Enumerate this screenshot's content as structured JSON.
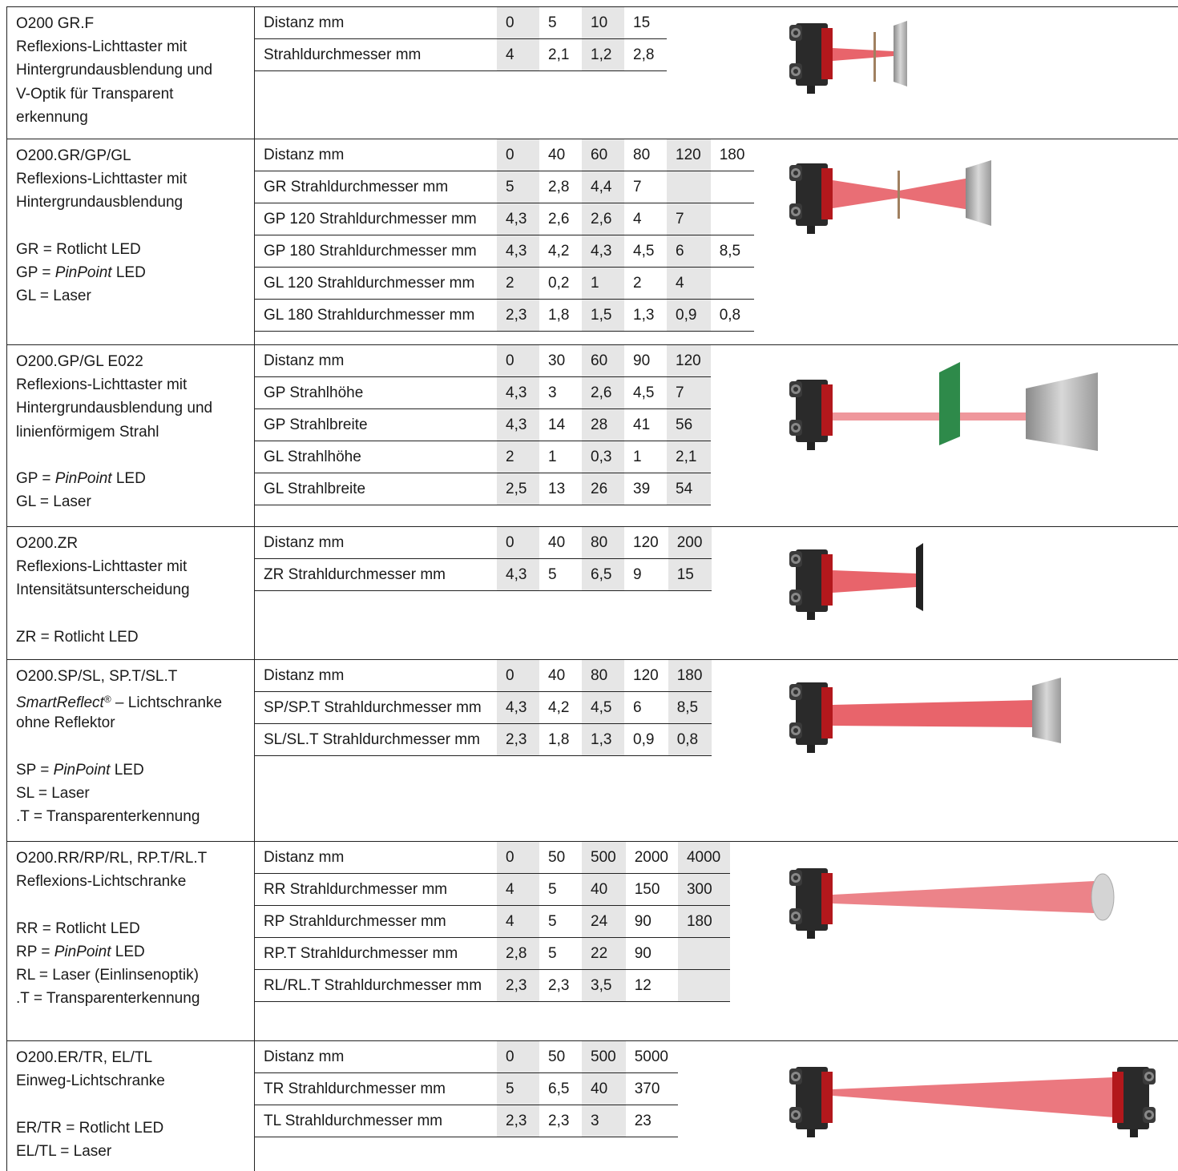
{
  "sections": [
    {
      "description": [
        [
          "O200 GR.F",
          "Reflexions-Lichttaster mit",
          "Hintergrundausblendung und",
          "V-Optik für Transparent",
          "erkennung"
        ]
      ],
      "rows": [
        [
          "Distanz mm",
          "0",
          "5",
          "10",
          "15"
        ],
        [
          "Strahldurchmesser mm",
          "4",
          "2,1",
          "1,2",
          "2,8"
        ]
      ]
    },
    {
      "description": [
        [
          "O200.GR/GP/GL",
          "Reflexions-Lichttaster mit",
          "Hintergrundausblendung"
        ],
        [
          "GR = Rotlicht LED",
          [
            {
              "text": "GP = "
            },
            {
              "text": "PinPoint",
              "italic": true
            },
            {
              "text": " LED"
            }
          ],
          "GL = Laser"
        ]
      ],
      "rows": [
        [
          "Distanz mm",
          "0",
          "40",
          "60",
          "80",
          "120",
          "180"
        ],
        [
          "GR Strahldurchmesser mm",
          "5",
          "2,8",
          "4,4",
          "7"
        ],
        [
          "GP 120 Strahldurchmesser mm",
          "4,3",
          "2,6",
          "2,6",
          "4",
          "7"
        ],
        [
          "GP 180 Strahldurchmesser mm",
          "4,3",
          "4,2",
          "4,3",
          "4,5",
          "6",
          "8,5"
        ],
        [
          "GL 120 Strahldurchmesser mm",
          "2",
          "0,2",
          "1",
          "2",
          "4"
        ],
        [
          "GL 180 Strahldurchmesser mm",
          "2,3",
          "1,8",
          "1,5",
          "1,3",
          "0,9",
          "0,8"
        ]
      ]
    },
    {
      "description": [
        [
          "O200.GP/GL E022",
          "Reflexions-Lichttaster mit",
          "Hintergrundausblendung und",
          "linienförmigem Strahl"
        ],
        [
          [
            {
              "text": "GP = "
            },
            {
              "text": "PinPoint",
              "italic": true
            },
            {
              "text": " LED"
            }
          ],
          "GL = Laser"
        ]
      ],
      "rows": [
        [
          "Distanz mm",
          "0",
          "30",
          "60",
          "90",
          "120"
        ],
        [
          "GP Strahlhöhe",
          "4,3",
          "3",
          "2,6",
          "4,5",
          "7"
        ],
        [
          "GP Strahlbreite",
          "4,3",
          "14",
          "28",
          "41",
          "56"
        ],
        [
          "GL Strahlhöhe",
          "2",
          "1",
          "0,3",
          "1",
          "2,1"
        ],
        [
          "GL Strahlbreite",
          "2,5",
          "13",
          "26",
          "39",
          "54"
        ]
      ]
    },
    {
      "description": [
        [
          "O200.ZR",
          "Reflexions-Lichttaster mit",
          "Intensitätsunterscheidung"
        ],
        [
          "ZR = Rotlicht LED"
        ]
      ],
      "rows": [
        [
          "Distanz mm",
          "0",
          "40",
          "80",
          "120",
          "200"
        ],
        [
          "ZR Strahldurchmesser mm",
          "4,3",
          "5",
          "6,5",
          "9",
          "15"
        ]
      ]
    },
    {
      "description": [
        [
          "O200.SP/SL, SP.T/SL.T",
          [
            {
              "text": "SmartReflect",
              "italic": true
            },
            {
              "text": "®",
              "sup": true
            },
            {
              "text": " – Lichtschranke"
            }
          ],
          "ohne Reflektor"
        ],
        [
          [
            {
              "text": "SP = "
            },
            {
              "text": "PinPoint",
              "italic": true
            },
            {
              "text": " LED"
            }
          ],
          "SL = Laser",
          ".T = Transparenterkennung"
        ]
      ],
      "rows": [
        [
          "Distanz mm",
          "0",
          "40",
          "80",
          "120",
          "180"
        ],
        [
          "SP/SP.T Strahldurchmesser mm",
          "4,3",
          "4,2",
          "4,5",
          "6",
          "8,5"
        ],
        [
          "SL/SL.T Strahldurchmesser mm",
          "2,3",
          "1,8",
          "1,3",
          "0,9",
          "0,8"
        ]
      ]
    },
    {
      "description": [
        [
          "O200.RR/RP/RL, RP.T/RL.T",
          "Reflexions-Lichtschranke"
        ],
        [
          "RR = Rotlicht LED",
          [
            {
              "text": "RP = "
            },
            {
              "text": "PinPoint",
              "italic": true
            },
            {
              "text": " LED"
            }
          ],
          "RL = Laser (Einlinsenoptik)",
          ".T = Transparenterkennung"
        ]
      ],
      "rows": [
        [
          "Distanz mm",
          "0",
          "50",
          "500",
          "2000",
          "4000"
        ],
        [
          "RR Strahldurchmesser mm",
          "4",
          "5",
          "40",
          "150",
          "300"
        ],
        [
          "RP Strahldurchmesser mm",
          "4",
          "5",
          "24",
          "90",
          "180"
        ],
        [
          "RP.T Strahldurchmesser mm",
          "2,8",
          "5",
          "22",
          "90"
        ],
        [
          "RL/RL.T Strahldurchmesser mm",
          "2,3",
          "2,3",
          "3,5",
          "12"
        ]
      ]
    },
    {
      "description": [
        [
          "O200.ER/TR, EL/TL",
          "Einweg-Lichtschranke"
        ],
        [
          "ER/TR = Rotlicht LED",
          "EL/TL = Laser"
        ]
      ],
      "rows": [
        [
          "Distanz mm",
          "0",
          "50",
          "500",
          "5000"
        ],
        [
          "TR Strahldurchmesser mm",
          "5",
          "6,5",
          "40",
          "370"
        ],
        [
          "TL Strahldurchmesser mm",
          "2,3",
          "2,3",
          "3",
          "23"
        ]
      ]
    }
  ]
}
